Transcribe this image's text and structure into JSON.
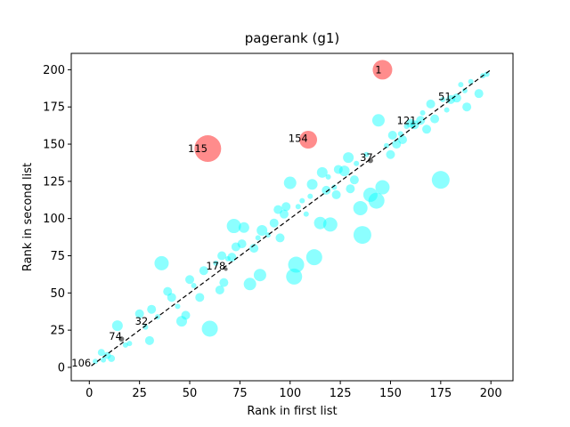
{
  "chart_data": {
    "type": "scatter",
    "title": "pagerank (g1)",
    "xlabel": "Rank in first list",
    "ylabel": "Rank in second list",
    "xlim": [
      -9,
      211
    ],
    "ylim": [
      -9,
      211
    ],
    "x_ticks": [
      0,
      25,
      50,
      75,
      100,
      125,
      150,
      175,
      200
    ],
    "y_ticks": [
      0,
      25,
      50,
      75,
      100,
      125,
      150,
      175,
      200
    ],
    "grid": false,
    "reference_line": {
      "style": "dashed",
      "color": "#000000",
      "from": [
        1,
        1
      ],
      "to": [
        200,
        200
      ]
    },
    "colors": {
      "near": "#00ffff",
      "outlier": "#ff0000",
      "exact": "#000000"
    },
    "series": [
      {
        "group": "near",
        "points": [
          {
            "x": 3,
            "y": 4,
            "s": 3
          },
          {
            "x": 6,
            "y": 10,
            "s": 4
          },
          {
            "x": 7,
            "y": 5,
            "s": 3
          },
          {
            "x": 9,
            "y": 8,
            "s": 4
          },
          {
            "x": 11,
            "y": 6,
            "s": 4
          },
          {
            "x": 14,
            "y": 28,
            "s": 6
          },
          {
            "x": 18,
            "y": 15,
            "s": 3
          },
          {
            "x": 20,
            "y": 16,
            "s": 3
          },
          {
            "x": 25,
            "y": 36,
            "s": 5
          },
          {
            "x": 28,
            "y": 27,
            "s": 3
          },
          {
            "x": 30,
            "y": 18,
            "s": 5
          },
          {
            "x": 31,
            "y": 39,
            "s": 5
          },
          {
            "x": 34,
            "y": 34,
            "s": 3
          },
          {
            "x": 36,
            "y": 70,
            "s": 8
          },
          {
            "x": 39,
            "y": 51,
            "s": 5
          },
          {
            "x": 41,
            "y": 47,
            "s": 5
          },
          {
            "x": 44,
            "y": 41,
            "s": 3
          },
          {
            "x": 46,
            "y": 31,
            "s": 6
          },
          {
            "x": 48,
            "y": 35,
            "s": 5
          },
          {
            "x": 50,
            "y": 59,
            "s": 5
          },
          {
            "x": 52,
            "y": 55,
            "s": 3
          },
          {
            "x": 55,
            "y": 47,
            "s": 5
          },
          {
            "x": 57,
            "y": 65,
            "s": 5
          },
          {
            "x": 60,
            "y": 26,
            "s": 9
          },
          {
            "x": 63,
            "y": 70,
            "s": 3
          },
          {
            "x": 65,
            "y": 52,
            "s": 5
          },
          {
            "x": 66,
            "y": 75,
            "s": 5
          },
          {
            "x": 67,
            "y": 57,
            "s": 5
          },
          {
            "x": 69,
            "y": 73,
            "s": 3
          },
          {
            "x": 71,
            "y": 74,
            "s": 5
          },
          {
            "x": 72,
            "y": 95,
            "s": 8
          },
          {
            "x": 73,
            "y": 81,
            "s": 5
          },
          {
            "x": 76,
            "y": 83,
            "s": 5
          },
          {
            "x": 77,
            "y": 94,
            "s": 6
          },
          {
            "x": 80,
            "y": 56,
            "s": 7
          },
          {
            "x": 82,
            "y": 80,
            "s": 5
          },
          {
            "x": 84,
            "y": 87,
            "s": 3
          },
          {
            "x": 85,
            "y": 62,
            "s": 7
          },
          {
            "x": 86,
            "y": 92,
            "s": 6
          },
          {
            "x": 89,
            "y": 89,
            "s": 3
          },
          {
            "x": 92,
            "y": 97,
            "s": 5
          },
          {
            "x": 94,
            "y": 106,
            "s": 5
          },
          {
            "x": 95,
            "y": 87,
            "s": 5
          },
          {
            "x": 97,
            "y": 103,
            "s": 5
          },
          {
            "x": 98,
            "y": 108,
            "s": 5
          },
          {
            "x": 100,
            "y": 124,
            "s": 7
          },
          {
            "x": 102,
            "y": 61,
            "s": 9
          },
          {
            "x": 103,
            "y": 69,
            "s": 9
          },
          {
            "x": 104,
            "y": 108,
            "s": 3
          },
          {
            "x": 106,
            "y": 112,
            "s": 3
          },
          {
            "x": 108,
            "y": 103,
            "s": 3
          },
          {
            "x": 110,
            "y": 115,
            "s": 3
          },
          {
            "x": 111,
            "y": 123,
            "s": 6
          },
          {
            "x": 112,
            "y": 74,
            "s": 9
          },
          {
            "x": 115,
            "y": 97,
            "s": 7
          },
          {
            "x": 116,
            "y": 131,
            "s": 6
          },
          {
            "x": 118,
            "y": 119,
            "s": 5
          },
          {
            "x": 119,
            "y": 128,
            "s": 3
          },
          {
            "x": 120,
            "y": 96,
            "s": 8
          },
          {
            "x": 122,
            "y": 121,
            "s": 3
          },
          {
            "x": 123,
            "y": 116,
            "s": 5
          },
          {
            "x": 124,
            "y": 133,
            "s": 5
          },
          {
            "x": 127,
            "y": 132,
            "s": 6
          },
          {
            "x": 129,
            "y": 141,
            "s": 6
          },
          {
            "x": 130,
            "y": 120,
            "s": 5
          },
          {
            "x": 132,
            "y": 126,
            "s": 5
          },
          {
            "x": 133,
            "y": 137,
            "s": 3
          },
          {
            "x": 135,
            "y": 107,
            "s": 8
          },
          {
            "x": 136,
            "y": 89,
            "s": 10
          },
          {
            "x": 138,
            "y": 143,
            "s": 3
          },
          {
            "x": 140,
            "y": 116,
            "s": 8
          },
          {
            "x": 143,
            "y": 112,
            "s": 9
          },
          {
            "x": 144,
            "y": 166,
            "s": 7
          },
          {
            "x": 146,
            "y": 121,
            "s": 8
          },
          {
            "x": 148,
            "y": 149,
            "s": 3
          },
          {
            "x": 150,
            "y": 143,
            "s": 5
          },
          {
            "x": 151,
            "y": 156,
            "s": 5
          },
          {
            "x": 153,
            "y": 150,
            "s": 5
          },
          {
            "x": 155,
            "y": 157,
            "s": 3
          },
          {
            "x": 156,
            "y": 153,
            "s": 5
          },
          {
            "x": 158,
            "y": 162,
            "s": 3
          },
          {
            "x": 160,
            "y": 164,
            "s": 5
          },
          {
            "x": 162,
            "y": 163,
            "s": 5
          },
          {
            "x": 165,
            "y": 166,
            "s": 5
          },
          {
            "x": 166,
            "y": 171,
            "s": 3
          },
          {
            "x": 168,
            "y": 160,
            "s": 5
          },
          {
            "x": 170,
            "y": 177,
            "s": 5
          },
          {
            "x": 172,
            "y": 167,
            "s": 5
          },
          {
            "x": 175,
            "y": 126,
            "s": 10
          },
          {
            "x": 176,
            "y": 180,
            "s": 3
          },
          {
            "x": 178,
            "y": 173,
            "s": 3
          },
          {
            "x": 180,
            "y": 180,
            "s": 5
          },
          {
            "x": 183,
            "y": 181,
            "s": 5
          },
          {
            "x": 185,
            "y": 190,
            "s": 3
          },
          {
            "x": 187,
            "y": 186,
            "s": 3
          },
          {
            "x": 188,
            "y": 175,
            "s": 5
          },
          {
            "x": 190,
            "y": 192,
            "s": 3
          },
          {
            "x": 194,
            "y": 184,
            "s": 5
          },
          {
            "x": 196,
            "y": 196,
            "s": 3
          },
          {
            "x": 198,
            "y": 197,
            "s": 3
          }
        ]
      },
      {
        "group": "outlier",
        "points": [
          {
            "x": 146,
            "y": 200,
            "s": 11
          },
          {
            "x": 59,
            "y": 147,
            "s": 15
          },
          {
            "x": 109,
            "y": 153,
            "s": 10
          }
        ]
      },
      {
        "group": "exact",
        "points": [
          {
            "x": 16,
            "y": 19,
            "s": 3
          },
          {
            "x": 140,
            "y": 139,
            "s": 3
          },
          {
            "x": 68,
            "y": 66,
            "s": 2
          }
        ]
      }
    ],
    "annotations": [
      {
        "text": "1",
        "x": 144,
        "y": 200
      },
      {
        "text": "51",
        "x": 177,
        "y": 182
      },
      {
        "text": "121",
        "x": 158,
        "y": 166
      },
      {
        "text": "154",
        "x": 104,
        "y": 154
      },
      {
        "text": "115",
        "x": 54,
        "y": 147
      },
      {
        "text": "37",
        "x": 138,
        "y": 141
      },
      {
        "text": "178",
        "x": 63,
        "y": 68
      },
      {
        "text": "32",
        "x": 26,
        "y": 31
      },
      {
        "text": "74",
        "x": 13,
        "y": 21
      },
      {
        "text": "106",
        "x": -4,
        "y": 3
      }
    ]
  }
}
